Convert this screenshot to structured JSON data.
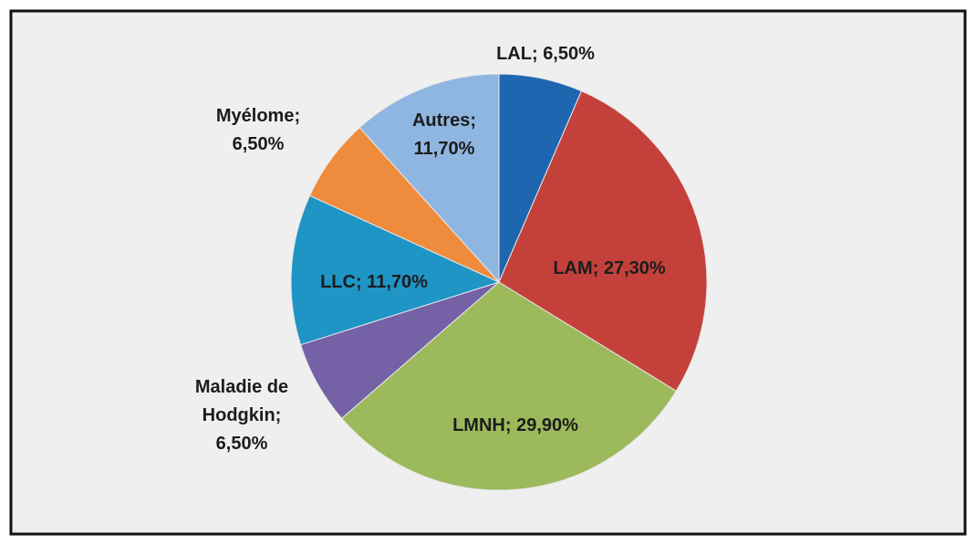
{
  "chart_data": {
    "type": "pie",
    "categories": [
      "LAL",
      "LAM",
      "LMNH",
      "Maladie de Hodgkin",
      "LLC",
      "Myélome",
      "Autres"
    ],
    "values": [
      6.5,
      27.3,
      29.9,
      6.5,
      11.7,
      6.5,
      11.7
    ],
    "value_labels": [
      [
        "LAL; 6,50%"
      ],
      [
        "LAM; 27,30%"
      ],
      [
        "LMNH; 29,90%"
      ],
      [
        "Maladie de",
        "Hodgkin;",
        "6,50%"
      ],
      [
        "LLC; 11,70%"
      ],
      [
        "Myélome;",
        "6,50%"
      ],
      [
        "Autres;",
        "11,70%"
      ]
    ],
    "colors": [
      "#1f66b0",
      "#c4413b",
      "#9cba5c",
      "#7461a6",
      "#1f95c6",
      "#ef8b3d",
      "#8fb6e0"
    ]
  }
}
